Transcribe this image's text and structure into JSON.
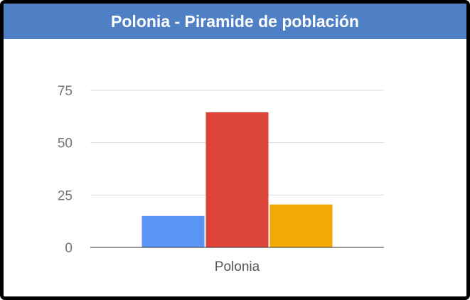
{
  "header": {
    "title": "Polonia - Piramide de población",
    "background": "#4f80c5"
  },
  "chart_data": {
    "type": "bar",
    "title": "Polonia - Piramide de población",
    "categories": [
      "Polonia"
    ],
    "series": [
      {
        "values": [
          15
        ],
        "color": "#5a95f5"
      },
      {
        "values": [
          64.5
        ],
        "color": "#dc4437"
      },
      {
        "values": [
          20.5
        ],
        "color": "#f3a803"
      }
    ],
    "ylim": [
      0,
      75
    ],
    "yticks": [
      0,
      25,
      50,
      75
    ],
    "grid": true,
    "xlabel": "",
    "ylabel": ""
  }
}
